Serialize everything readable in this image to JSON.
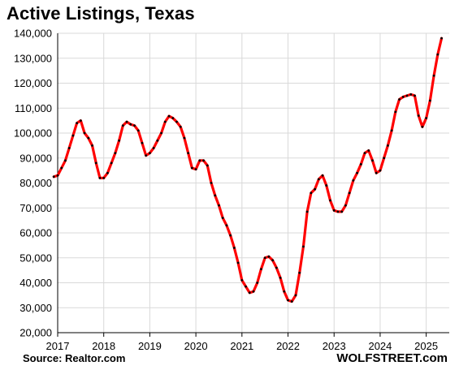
{
  "title": "Active Listings, Texas",
  "source": "Source: Realtor.com",
  "brand": "WOLFSTREET.com",
  "colors": {
    "line": "#ff0000",
    "markers": "#000000",
    "grid": "#d9d9d9",
    "axis": "#000000"
  },
  "chart_data": {
    "type": "line",
    "title": "Active Listings, Texas",
    "xlabel": "",
    "ylabel": "",
    "xlim": [
      2017,
      2025.5
    ],
    "ylim": [
      20000,
      140000
    ],
    "x_ticks": [
      "2017",
      "2018",
      "2019",
      "2020",
      "2021",
      "2022",
      "2023",
      "2024",
      "2025"
    ],
    "y_ticks": [
      "20,000",
      "30,000",
      "40,000",
      "50,000",
      "60,000",
      "70,000",
      "80,000",
      "90,000",
      "100,000",
      "110,000",
      "120,000",
      "130,000",
      "140,000"
    ],
    "grid": true,
    "legend": "none",
    "frequency": "monthly",
    "series": [
      {
        "start": "2016-12",
        "values": [
          82500,
          83000,
          86000,
          89000,
          94000,
          99000,
          104000,
          105000,
          100000,
          98000,
          95000,
          88000,
          82000,
          82000,
          84000,
          88000,
          92000,
          97000,
          103000,
          104500,
          103500,
          103000,
          101000,
          96000,
          91000,
          92000,
          94000,
          97000,
          100000,
          104500,
          106800,
          106000,
          104500,
          102500,
          98000,
          92000,
          86000,
          85500,
          89000,
          89000,
          87000,
          80000,
          75000,
          71000,
          66000,
          63000,
          59000,
          54000,
          48000,
          41000,
          38500,
          36000,
          36500,
          40000,
          45500,
          50000,
          50500,
          49000,
          46000,
          42000,
          36500,
          33000,
          32500,
          35000,
          44000,
          54500,
          68500,
          76000,
          77500,
          81500,
          83000,
          79000,
          73000,
          69000,
          68500,
          68500,
          71000,
          76000,
          81000,
          84000,
          87500,
          92000,
          93000,
          89000,
          84000,
          85000,
          90000,
          95000,
          101000,
          108500,
          113500,
          114500,
          115000,
          115500,
          115000,
          107000,
          102500,
          106000,
          113000,
          123000,
          131500,
          138000
        ]
      }
    ]
  }
}
